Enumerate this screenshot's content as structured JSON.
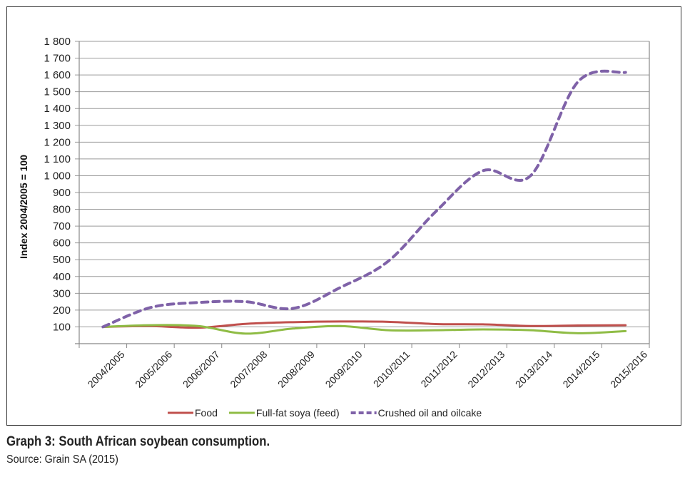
{
  "chart_data": {
    "type": "line",
    "title": "Graph 3: South African soybean consumption.",
    "source": "Source: Grain SA (2015)",
    "xlabel": "",
    "ylabel": "Index 2004/2005 = 100",
    "ylim": [
      0,
      1800
    ],
    "yticks": [
      100,
      200,
      300,
      400,
      500,
      600,
      700,
      800,
      900,
      1000,
      1100,
      1200,
      1300,
      1400,
      1500,
      1600,
      1700,
      1800
    ],
    "ytick_labels": [
      "100",
      "200",
      "300",
      "400",
      "500",
      "600",
      "700",
      "800",
      "900",
      "1 000",
      "1 100",
      "1 200",
      "1 300",
      "1 400",
      "1 500",
      "1 600",
      "1 700",
      "1 800"
    ],
    "grid": true,
    "legend_position": "bottom",
    "categories": [
      "2004/2005",
      "2005/2006",
      "2006/2007",
      "2007/2008",
      "2008/2009",
      "2009/2010",
      "2010/2011",
      "2011/2012",
      "2012/2013",
      "2013/2014",
      "2014/2015",
      "2015/2016"
    ],
    "series": [
      {
        "name": "Food",
        "color": "#c0504d",
        "dash": false,
        "values": [
          100,
          105,
          95,
          118,
          128,
          132,
          130,
          117,
          115,
          105,
          108,
          110
        ]
      },
      {
        "name": "Full-fat soya (feed)",
        "color": "#8fbc45",
        "dash": false,
        "values": [
          100,
          110,
          105,
          60,
          90,
          105,
          80,
          80,
          85,
          80,
          62,
          75
        ]
      },
      {
        "name": "Crushed oil and oilcake",
        "color": "#7f62a8",
        "dash": true,
        "values": [
          100,
          215,
          245,
          250,
          210,
          335,
          490,
          785,
          1030,
          1000,
          1560,
          1615
        ]
      }
    ]
  }
}
